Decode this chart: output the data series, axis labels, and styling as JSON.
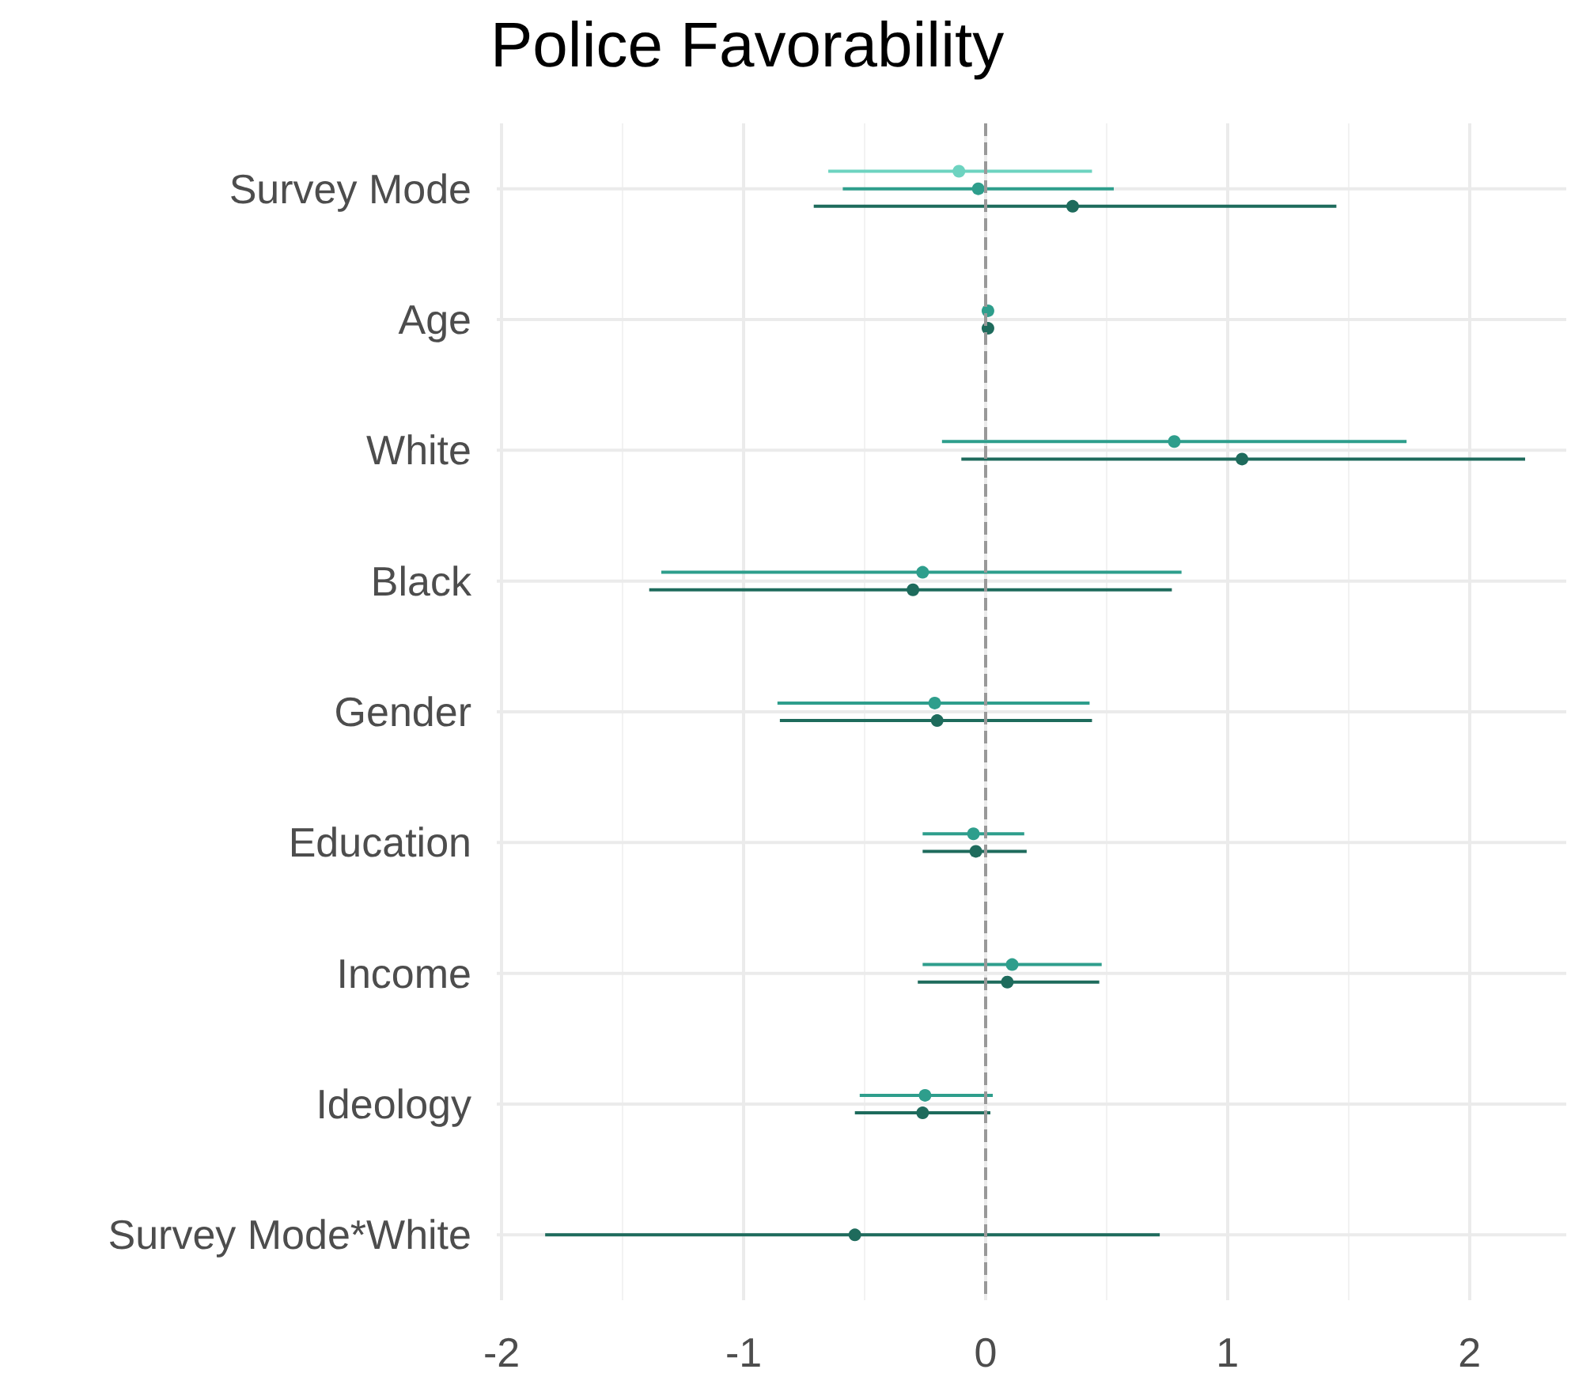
{
  "chart_data": {
    "type": "scatter",
    "title": "Police Favorability",
    "orientation": "horizontal",
    "categories": [
      "Survey Mode",
      "Age",
      "White",
      "Black",
      "Gender",
      "Education",
      "Income",
      "Ideology",
      "Survey Mode*White"
    ],
    "series": [
      {
        "color": "#6dd3c0",
        "values": [
          -0.11,
          null,
          null,
          null,
          null,
          null,
          null,
          null,
          null
        ],
        "errors": [
          [
            -0.65,
            0.44
          ],
          null,
          null,
          null,
          null,
          null,
          null,
          null,
          null
        ]
      },
      {
        "color": "#2e9e8c",
        "values": [
          -0.03,
          0.01,
          0.78,
          -0.26,
          -0.21,
          -0.05,
          0.11,
          -0.25,
          null
        ],
        "errors": [
          [
            -0.59,
            0.53
          ],
          null,
          [
            -0.18,
            1.74
          ],
          [
            -1.34,
            0.81
          ],
          [
            -0.86,
            0.43
          ],
          [
            -0.26,
            0.16
          ],
          [
            -0.26,
            0.48
          ],
          [
            -0.52,
            0.03
          ],
          null
        ]
      },
      {
        "color": "#1e6b5c",
        "values": [
          0.36,
          0.01,
          1.06,
          -0.3,
          -0.2,
          -0.04,
          0.09,
          -0.26,
          -0.54
        ],
        "errors": [
          [
            -0.71,
            1.45
          ],
          null,
          [
            -0.1,
            2.23
          ],
          [
            -1.39,
            0.77
          ],
          [
            -0.85,
            0.44
          ],
          [
            -0.26,
            0.17
          ],
          [
            -0.28,
            0.47
          ],
          [
            -0.54,
            0.02
          ],
          [
            -1.82,
            0.72
          ]
        ]
      }
    ],
    "xlim": [
      -2.02,
      2.4
    ],
    "xticks": [
      -2,
      -1,
      0,
      1,
      2
    ],
    "grid": true,
    "marker": "circle",
    "ref_lines": [
      {
        "axis": "x",
        "value": 0,
        "color": "#999999",
        "line_style": "dashed"
      }
    ]
  }
}
